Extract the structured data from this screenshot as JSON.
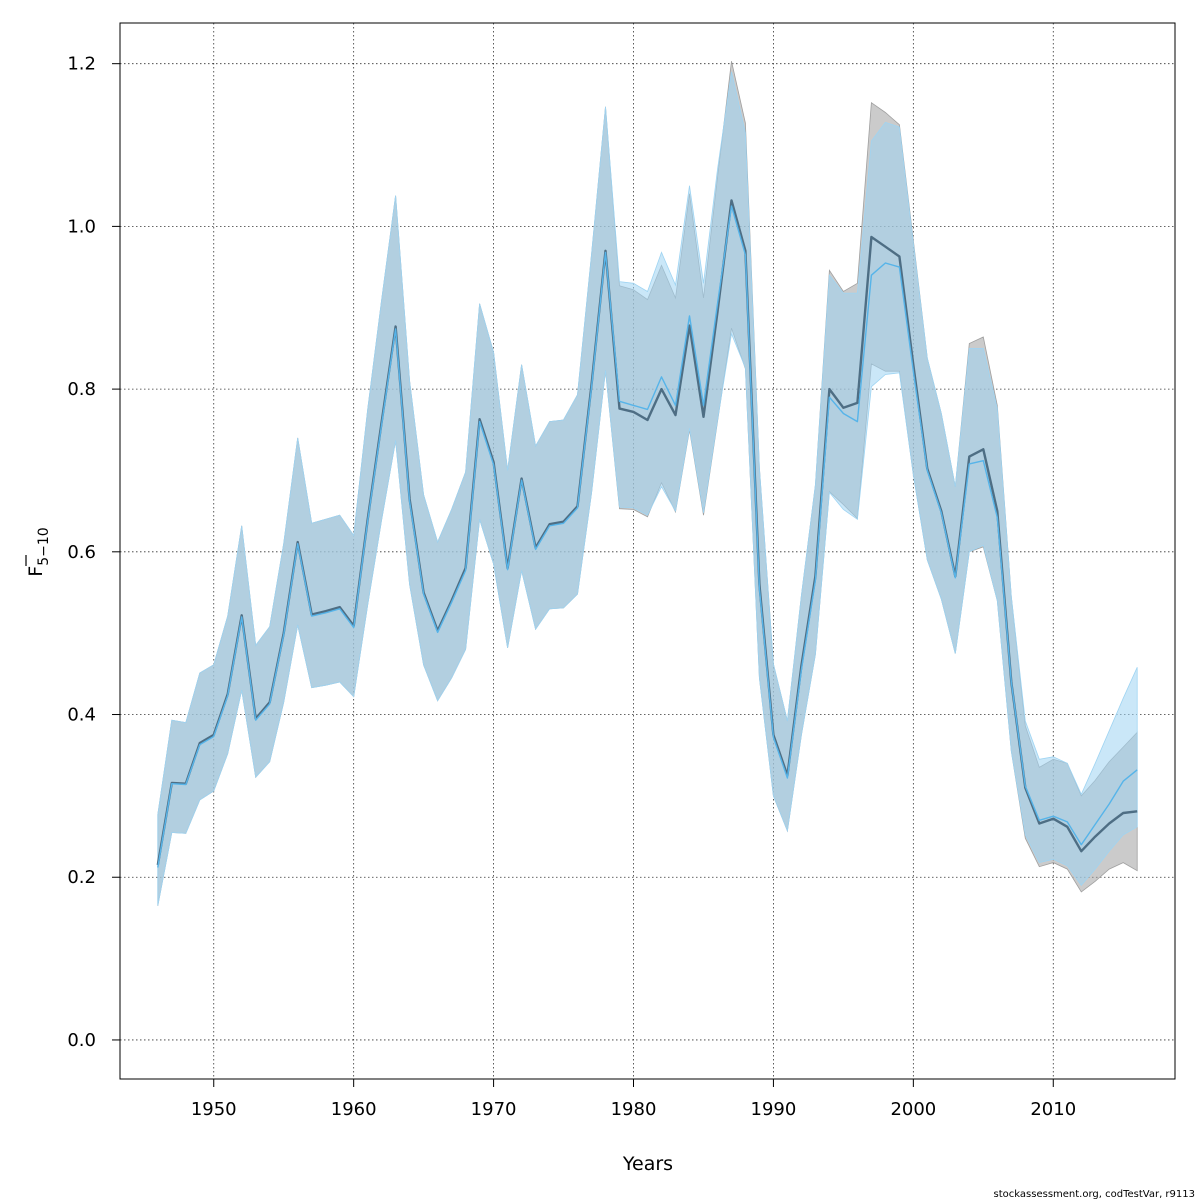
{
  "chart_data": {
    "type": "line",
    "xlabel": "Years",
    "ylabel": "F",
    "ylabel_sub": "5−10",
    "credit": "stockassessment.org, codTestVar, r9113",
    "xlim": [
      1943.3,
      2018.7
    ],
    "ylim": [
      -0.048,
      1.25
    ],
    "x_ticks": [
      "1950",
      "1960",
      "1970",
      "1980",
      "1990",
      "2000",
      "2010"
    ],
    "y_ticks": [
      "0.0",
      "0.2",
      "0.4",
      "0.6",
      "0.8",
      "1.0",
      "1.2"
    ],
    "grid": true,
    "x": [
      1946,
      1947,
      1948,
      1949,
      1950,
      1951,
      1952,
      1953,
      1954,
      1955,
      1956,
      1957,
      1958,
      1959,
      1960,
      1961,
      1962,
      1963,
      1964,
      1965,
      1966,
      1967,
      1968,
      1969,
      1970,
      1971,
      1972,
      1973,
      1974,
      1975,
      1976,
      1977,
      1978,
      1979,
      1980,
      1981,
      1982,
      1983,
      1984,
      1985,
      1986,
      1987,
      1988,
      1989,
      1990,
      1991,
      1992,
      1993,
      1994,
      1995,
      1996,
      1997,
      1998,
      1999,
      2000,
      2001,
      2002,
      2003,
      2004,
      2005,
      2006,
      2007,
      2008,
      2009,
      2010,
      2011,
      2012,
      2013,
      2014,
      2015,
      2016
    ],
    "series": [
      {
        "color": "#4e6e84",
        "band_color": "#a0a0a0",
        "mean": [
          0.215,
          0.316,
          0.315,
          0.365,
          0.375,
          0.425,
          0.522,
          0.395,
          0.415,
          0.5,
          0.612,
          0.523,
          0.527,
          0.532,
          0.509,
          0.64,
          0.76,
          0.877,
          0.665,
          0.55,
          0.503,
          0.54,
          0.58,
          0.763,
          0.71,
          0.58,
          0.69,
          0.605,
          0.634,
          0.637,
          0.656,
          0.805,
          0.97,
          0.776,
          0.772,
          0.762,
          0.8,
          0.768,
          0.878,
          0.766,
          0.895,
          1.032,
          0.97,
          0.56,
          0.375,
          0.325,
          0.46,
          0.57,
          0.8,
          0.777,
          0.783,
          0.987,
          0.975,
          0.963,
          0.83,
          0.702,
          0.65,
          0.57,
          0.717,
          0.726,
          0.65,
          0.44,
          0.31,
          0.266,
          0.272,
          0.262,
          0.232,
          0.25,
          0.266,
          0.279,
          0.281
        ],
        "lower": [
          0.165,
          0.255,
          0.254,
          0.295,
          0.306,
          0.352,
          0.43,
          0.323,
          0.342,
          0.415,
          0.51,
          0.433,
          0.436,
          0.44,
          0.422,
          0.535,
          0.64,
          0.737,
          0.56,
          0.461,
          0.417,
          0.445,
          0.48,
          0.64,
          0.585,
          0.482,
          0.577,
          0.505,
          0.53,
          0.531,
          0.548,
          0.672,
          0.823,
          0.653,
          0.652,
          0.643,
          0.685,
          0.649,
          0.75,
          0.645,
          0.76,
          0.875,
          0.825,
          0.445,
          0.3,
          0.257,
          0.375,
          0.474,
          0.674,
          0.658,
          0.641,
          0.831,
          0.822,
          0.822,
          0.695,
          0.59,
          0.542,
          0.475,
          0.6,
          0.606,
          0.54,
          0.355,
          0.248,
          0.213,
          0.218,
          0.21,
          0.182,
          0.195,
          0.21,
          0.218,
          0.208
        ],
        "upper": [
          0.277,
          0.393,
          0.39,
          0.451,
          0.461,
          0.521,
          0.632,
          0.485,
          0.508,
          0.61,
          0.74,
          0.635,
          0.64,
          0.645,
          0.62,
          0.775,
          0.91,
          1.038,
          0.81,
          0.67,
          0.612,
          0.652,
          0.698,
          0.905,
          0.845,
          0.7,
          0.83,
          0.73,
          0.76,
          0.762,
          0.793,
          0.965,
          1.147,
          0.927,
          0.922,
          0.91,
          0.952,
          0.912,
          1.04,
          0.912,
          1.06,
          1.203,
          1.127,
          0.703,
          0.462,
          0.392,
          0.546,
          0.682,
          0.946,
          0.92,
          0.93,
          1.152,
          1.14,
          1.125,
          0.983,
          0.838,
          0.77,
          0.68,
          0.856,
          0.864,
          0.78,
          0.545,
          0.386,
          0.335,
          0.345,
          0.34,
          0.3,
          0.319,
          0.342,
          0.36,
          0.378
        ]
      },
      {
        "color": "#56b4e9",
        "band_color": "#9fd4f2",
        "mean": [
          0.212,
          0.315,
          0.314,
          0.363,
          0.373,
          0.423,
          0.52,
          0.393,
          0.413,
          0.498,
          0.61,
          0.521,
          0.525,
          0.53,
          0.507,
          0.638,
          0.757,
          0.874,
          0.662,
          0.548,
          0.501,
          0.538,
          0.577,
          0.76,
          0.707,
          0.578,
          0.688,
          0.603,
          0.632,
          0.635,
          0.654,
          0.802,
          0.968,
          0.785,
          0.78,
          0.775,
          0.815,
          0.78,
          0.89,
          0.78,
          0.905,
          1.025,
          0.965,
          0.555,
          0.372,
          0.322,
          0.455,
          0.565,
          0.79,
          0.77,
          0.76,
          0.94,
          0.955,
          0.95,
          0.822,
          0.7,
          0.648,
          0.568,
          0.708,
          0.712,
          0.642,
          0.44,
          0.312,
          0.27,
          0.275,
          0.268,
          0.24,
          0.265,
          0.29,
          0.318,
          0.332
        ],
        "lower": [
          0.165,
          0.255,
          0.254,
          0.295,
          0.306,
          0.352,
          0.43,
          0.323,
          0.342,
          0.415,
          0.51,
          0.433,
          0.436,
          0.44,
          0.422,
          0.535,
          0.64,
          0.737,
          0.56,
          0.461,
          0.417,
          0.445,
          0.48,
          0.64,
          0.585,
          0.482,
          0.577,
          0.505,
          0.53,
          0.531,
          0.548,
          0.672,
          0.823,
          0.655,
          0.654,
          0.645,
          0.68,
          0.65,
          0.752,
          0.648,
          0.762,
          0.868,
          0.826,
          0.445,
          0.3,
          0.257,
          0.375,
          0.474,
          0.673,
          0.652,
          0.64,
          0.803,
          0.818,
          0.82,
          0.695,
          0.59,
          0.542,
          0.475,
          0.6,
          0.608,
          0.54,
          0.355,
          0.252,
          0.218,
          0.222,
          0.214,
          0.19,
          0.21,
          0.232,
          0.252,
          0.262
        ],
        "upper": [
          0.277,
          0.393,
          0.39,
          0.451,
          0.461,
          0.521,
          0.632,
          0.485,
          0.508,
          0.61,
          0.74,
          0.635,
          0.64,
          0.645,
          0.62,
          0.775,
          0.91,
          1.038,
          0.81,
          0.67,
          0.612,
          0.652,
          0.698,
          0.905,
          0.845,
          0.7,
          0.83,
          0.73,
          0.76,
          0.762,
          0.793,
          0.965,
          1.147,
          0.932,
          0.93,
          0.92,
          0.968,
          0.928,
          1.05,
          0.93,
          1.07,
          1.19,
          1.115,
          0.703,
          0.462,
          0.392,
          0.546,
          0.682,
          0.94,
          0.918,
          0.918,
          1.105,
          1.128,
          1.122,
          0.98,
          0.838,
          0.77,
          0.68,
          0.85,
          0.85,
          0.776,
          0.545,
          0.392,
          0.345,
          0.348,
          0.34,
          0.302,
          0.34,
          0.38,
          0.42,
          0.458
        ]
      }
    ]
  }
}
